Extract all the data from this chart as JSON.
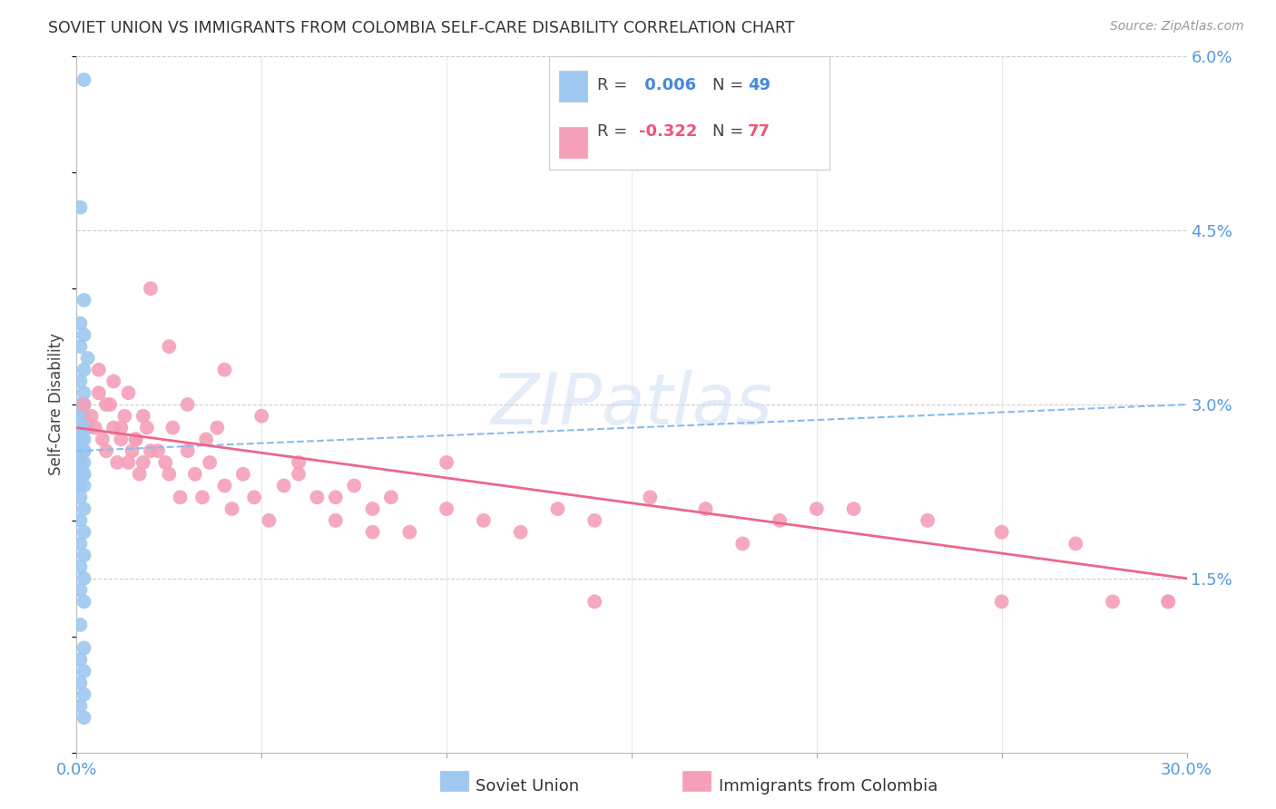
{
  "title": "SOVIET UNION VS IMMIGRANTS FROM COLOMBIA SELF-CARE DISABILITY CORRELATION CHART",
  "source": "Source: ZipAtlas.com",
  "ylabel": "Self-Care Disability",
  "x_min": 0.0,
  "x_max": 0.3,
  "y_min": 0.0,
  "y_max": 0.06,
  "x_ticks": [
    0.0,
    0.05,
    0.1,
    0.15,
    0.2,
    0.25,
    0.3
  ],
  "x_tick_labels_show": [
    "0.0%",
    "30.0%"
  ],
  "y_ticks": [
    0.0,
    0.015,
    0.03,
    0.045,
    0.06
  ],
  "y_tick_labels": [
    "",
    "1.5%",
    "3.0%",
    "4.5%",
    "6.0%"
  ],
  "legend_r1_prefix": "R = ",
  "legend_r1_val": " 0.006",
  "legend_n1_prefix": "N = ",
  "legend_n1_val": "49",
  "legend_r2_prefix": "R = ",
  "legend_r2_val": "-0.322",
  "legend_n2_prefix": "N = ",
  "legend_n2_val": "77",
  "color_blue": "#9ec8f0",
  "color_pink": "#f4a0b8",
  "color_line_blue": "#88bbee",
  "color_line_pink": "#ee6688",
  "watermark": "ZIPatlas",
  "su_trend_x": [
    0.0,
    0.3
  ],
  "su_trend_y": [
    0.026,
    0.03
  ],
  "col_trend_x": [
    0.0,
    0.3
  ],
  "col_trend_y": [
    0.028,
    0.015
  ],
  "soviet_union_x": [
    0.002,
    0.001,
    0.002,
    0.001,
    0.002,
    0.001,
    0.003,
    0.002,
    0.001,
    0.002,
    0.001,
    0.002,
    0.001,
    0.002,
    0.003,
    0.001,
    0.002,
    0.001,
    0.002,
    0.001,
    0.002,
    0.001,
    0.002,
    0.001,
    0.002,
    0.001,
    0.002,
    0.001,
    0.002,
    0.001,
    0.002,
    0.001,
    0.002,
    0.001,
    0.002,
    0.001,
    0.002,
    0.001,
    0.002,
    0.001,
    0.002,
    0.001,
    0.002,
    0.001,
    0.002,
    0.001,
    0.002,
    0.001,
    0.002
  ],
  "soviet_union_y": [
    0.058,
    0.047,
    0.039,
    0.037,
    0.036,
    0.035,
    0.034,
    0.033,
    0.032,
    0.031,
    0.03,
    0.03,
    0.029,
    0.029,
    0.028,
    0.028,
    0.028,
    0.027,
    0.027,
    0.027,
    0.026,
    0.026,
    0.026,
    0.025,
    0.025,
    0.025,
    0.024,
    0.024,
    0.024,
    0.023,
    0.023,
    0.022,
    0.021,
    0.02,
    0.019,
    0.018,
    0.017,
    0.016,
    0.015,
    0.014,
    0.013,
    0.011,
    0.009,
    0.008,
    0.007,
    0.006,
    0.005,
    0.004,
    0.003
  ],
  "colombia_x": [
    0.002,
    0.004,
    0.005,
    0.006,
    0.007,
    0.008,
    0.009,
    0.01,
    0.011,
    0.012,
    0.013,
    0.014,
    0.015,
    0.016,
    0.017,
    0.018,
    0.019,
    0.02,
    0.022,
    0.024,
    0.025,
    0.026,
    0.028,
    0.03,
    0.032,
    0.034,
    0.036,
    0.038,
    0.04,
    0.042,
    0.045,
    0.048,
    0.052,
    0.056,
    0.06,
    0.065,
    0.07,
    0.075,
    0.08,
    0.085,
    0.09,
    0.1,
    0.11,
    0.12,
    0.13,
    0.14,
    0.155,
    0.17,
    0.19,
    0.21,
    0.23,
    0.25,
    0.27,
    0.006,
    0.008,
    0.01,
    0.012,
    0.014,
    0.016,
    0.018,
    0.02,
    0.025,
    0.03,
    0.035,
    0.04,
    0.05,
    0.06,
    0.07,
    0.08,
    0.1,
    0.18,
    0.2,
    0.14,
    0.25,
    0.28,
    0.295,
    0.295
  ],
  "colombia_y": [
    0.03,
    0.029,
    0.028,
    0.031,
    0.027,
    0.026,
    0.03,
    0.028,
    0.025,
    0.027,
    0.029,
    0.025,
    0.026,
    0.027,
    0.024,
    0.025,
    0.028,
    0.026,
    0.026,
    0.025,
    0.024,
    0.028,
    0.022,
    0.026,
    0.024,
    0.022,
    0.025,
    0.028,
    0.023,
    0.021,
    0.024,
    0.022,
    0.02,
    0.023,
    0.024,
    0.022,
    0.02,
    0.023,
    0.021,
    0.022,
    0.019,
    0.021,
    0.02,
    0.019,
    0.021,
    0.02,
    0.022,
    0.021,
    0.02,
    0.021,
    0.02,
    0.019,
    0.018,
    0.033,
    0.03,
    0.032,
    0.028,
    0.031,
    0.027,
    0.029,
    0.04,
    0.035,
    0.03,
    0.027,
    0.033,
    0.029,
    0.025,
    0.022,
    0.019,
    0.025,
    0.018,
    0.021,
    0.013,
    0.013,
    0.013,
    0.013,
    0.013
  ]
}
